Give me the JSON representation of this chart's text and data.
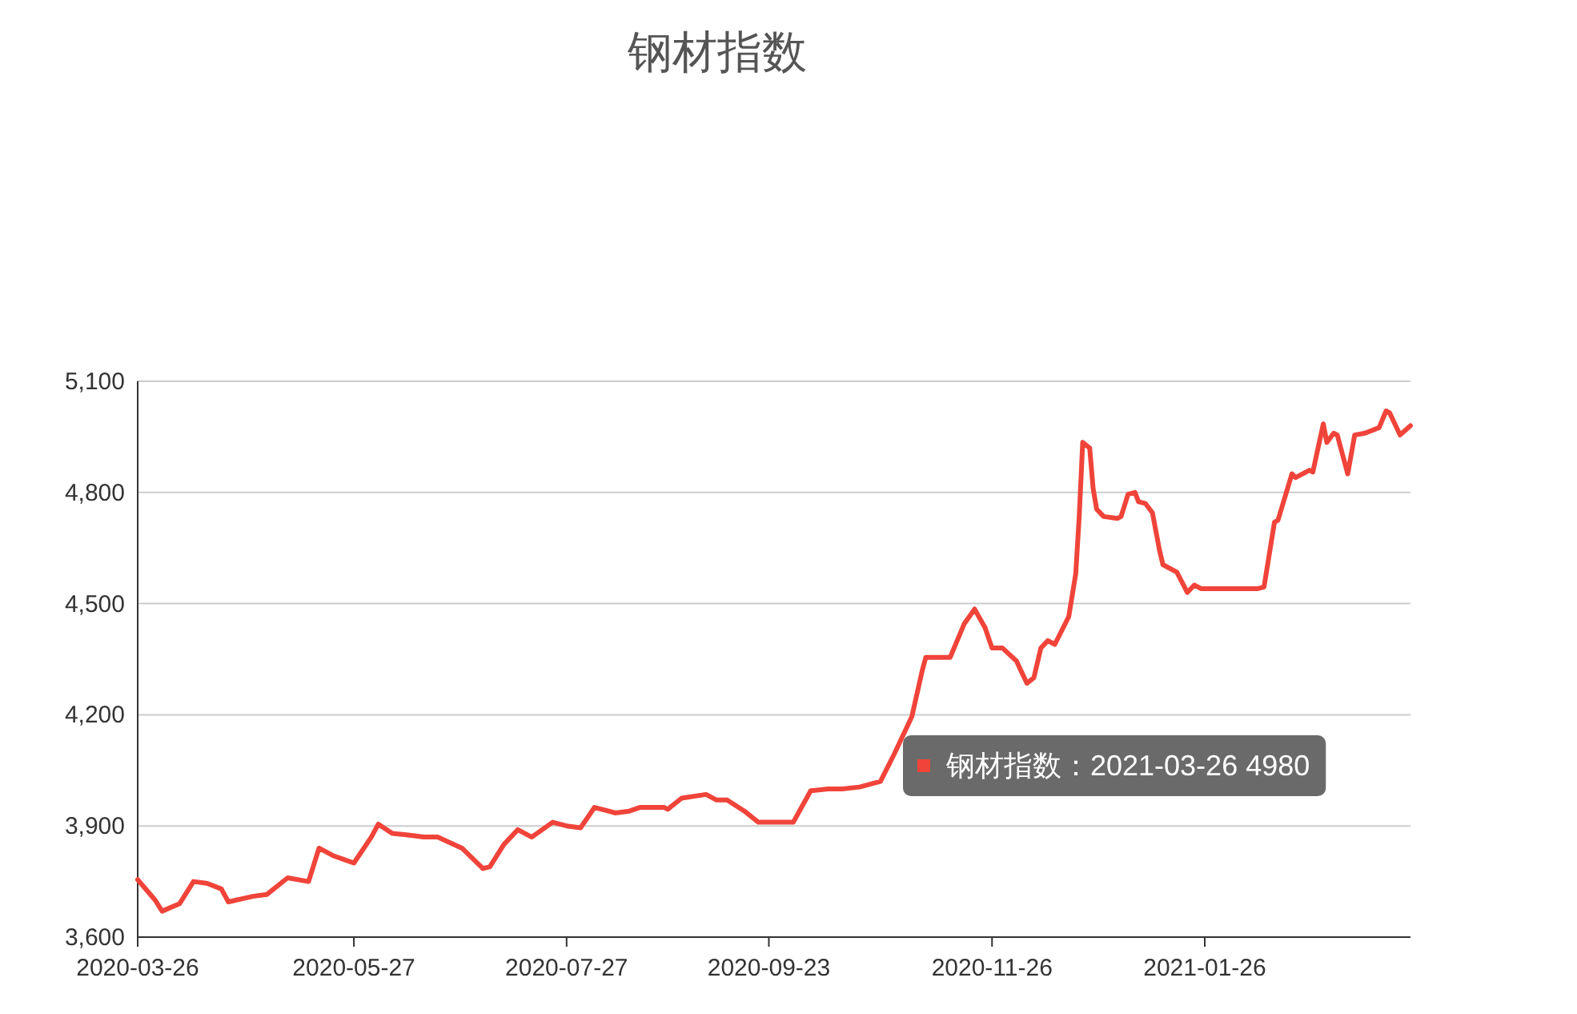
{
  "chart_data": {
    "type": "line",
    "title": "钢材指数",
    "x": [
      "2020-03-26",
      "2020-03-31",
      "2020-04-02",
      "2020-04-07",
      "2020-04-11",
      "2020-04-15",
      "2020-04-19",
      "2020-04-21",
      "2020-04-28",
      "2020-05-02",
      "2020-05-08",
      "2020-05-14",
      "2020-05-17",
      "2020-05-21",
      "2020-05-24",
      "2020-05-27",
      "2020-06-01",
      "2020-06-03",
      "2020-06-07",
      "2020-06-12",
      "2020-06-16",
      "2020-06-20",
      "2020-06-27",
      "2020-07-03",
      "2020-07-05",
      "2020-07-09",
      "2020-07-13",
      "2020-07-17",
      "2020-07-23",
      "2020-07-27",
      "2020-07-31",
      "2020-08-04",
      "2020-08-10",
      "2020-08-14",
      "2020-08-17",
      "2020-08-24",
      "2020-08-25",
      "2020-08-29",
      "2020-09-05",
      "2020-09-08",
      "2020-09-11",
      "2020-09-16",
      "2020-09-20",
      "2020-09-23",
      "2020-09-30",
      "2020-10-05",
      "2020-10-10",
      "2020-10-14",
      "2020-10-19",
      "2020-10-25",
      "2020-10-29",
      "2020-11-03",
      "2020-11-06",
      "2020-11-07",
      "2020-11-14",
      "2020-11-18",
      "2020-11-21",
      "2020-11-24",
      "2020-11-26",
      "2020-11-29",
      "2020-12-03",
      "2020-12-06",
      "2020-12-08",
      "2020-12-10",
      "2020-12-12",
      "2020-12-14",
      "2020-12-18",
      "2020-12-20",
      "2020-12-21",
      "2020-12-22",
      "2020-12-24",
      "2020-12-25",
      "2020-12-26",
      "2020-12-28",
      "2021-01-01",
      "2021-01-02",
      "2021-01-04",
      "2021-01-06",
      "2021-01-07",
      "2021-01-09",
      "2021-01-11",
      "2021-01-13",
      "2021-01-14",
      "2021-01-18",
      "2021-01-21",
      "2021-01-23",
      "2021-01-25",
      "2021-01-26",
      "2021-02-03",
      "2021-02-10",
      "2021-02-12",
      "2021-02-15",
      "2021-02-16",
      "2021-02-20",
      "2021-02-21",
      "2021-02-25",
      "2021-02-26",
      "2021-03-01",
      "2021-03-02",
      "2021-03-04",
      "2021-03-05",
      "2021-03-08",
      "2021-03-10",
      "2021-03-13",
      "2021-03-17",
      "2021-03-19",
      "2021-03-20",
      "2021-03-23",
      "2021-03-26"
    ],
    "series": [
      {
        "color": "#f0443a",
        "values": [
          3755,
          3700,
          3670,
          3690,
          3750,
          3745,
          3730,
          3695,
          3710,
          3715,
          3760,
          3750,
          3840,
          3820,
          3810,
          3800,
          3870,
          3905,
          3880,
          3875,
          3870,
          3870,
          3840,
          3785,
          3790,
          3850,
          3890,
          3870,
          3910,
          3900,
          3895,
          3950,
          3935,
          3940,
          3950,
          3950,
          3945,
          3975,
          3985,
          3970,
          3970,
          3940,
          3910,
          3910,
          3910,
          3995,
          4000,
          4000,
          4005,
          4020,
          4095,
          4195,
          4320,
          4355,
          4355,
          4445,
          4485,
          4435,
          4380,
          4380,
          4345,
          4285,
          4300,
          4380,
          4400,
          4390,
          4465,
          4580,
          4735,
          4935,
          4920,
          4810,
          4755,
          4735,
          4730,
          4735,
          4795,
          4800,
          4775,
          4770,
          4745,
          4645,
          4605,
          4585,
          4530,
          4550,
          4540,
          4540,
          4540,
          4540,
          4545,
          4720,
          4725,
          4850,
          4840,
          4860,
          4855,
          4985,
          4935,
          4960,
          4955,
          4850,
          4955,
          4960,
          4975,
          5020,
          5015,
          4955,
          4980
        ]
      }
    ],
    "xlim": [
      "2020-03-26",
      "2021-03-26"
    ],
    "xticks": [
      "2020-03-26",
      "2020-05-27",
      "2020-07-27",
      "2020-09-23",
      "2020-11-26",
      "2021-01-26"
    ],
    "ylim": [
      3600,
      5100
    ],
    "yticks": [
      {
        "value": 3600,
        "label": "3,600"
      },
      {
        "value": 3900,
        "label": "3,900"
      },
      {
        "value": 4200,
        "label": "4,200"
      },
      {
        "value": 4500,
        "label": "4,500"
      },
      {
        "value": 4800,
        "label": "4,800"
      },
      {
        "value": 5100,
        "label": "5,100"
      }
    ],
    "grid": "y",
    "line_style": "solid",
    "annotations": [
      "钢材指数：2021-03-26 4980"
    ]
  }
}
